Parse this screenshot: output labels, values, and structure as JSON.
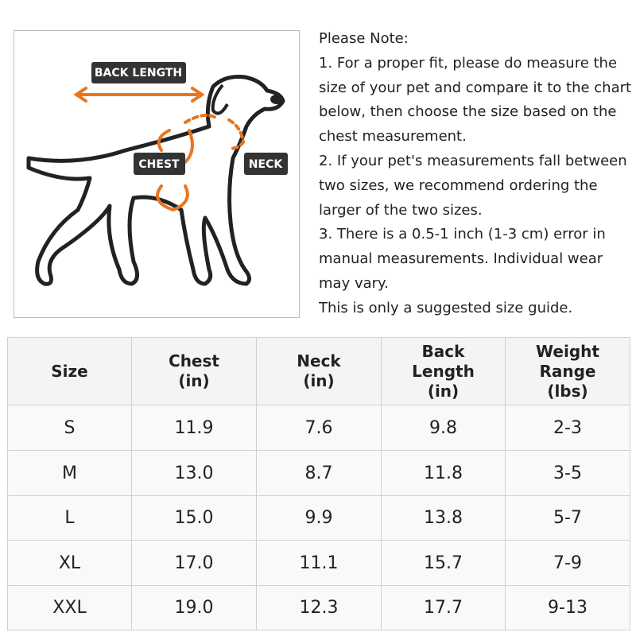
{
  "diagram": {
    "labels": {
      "back_length": "BACK LENGTH",
      "chest": "CHEST",
      "neck": "NECK"
    }
  },
  "note": {
    "lines": [
      "Please Note:",
      "1. For a proper fit, please do measure the",
      "size of your pet and compare it to the chart",
      "below, then choose the size based on the",
      "chest measurement.",
      "2. If your pet's measurements fall between",
      "two sizes, we recommend ordering the",
      "larger of the two sizes.",
      "3. There is a 0.5-1 inch (1-3 cm) error in",
      "manual measurements. Individual wear",
      "may vary.",
      "This is only a suggested size guide."
    ]
  },
  "table": {
    "header": [
      [
        "Size"
      ],
      [
        "Chest",
        "(in)"
      ],
      [
        "Neck",
        "(in)"
      ],
      [
        "Back",
        "Length",
        "(in)"
      ],
      [
        "Weight",
        "Range",
        "(lbs)"
      ]
    ],
    "rows": [
      [
        "S",
        "11.9",
        "7.6",
        "9.8",
        "2-3"
      ],
      [
        "M",
        "13.0",
        "8.7",
        "11.8",
        "3-5"
      ],
      [
        "L",
        "15.0",
        "9.9",
        "13.8",
        "5-7"
      ],
      [
        "XL",
        "17.0",
        "11.1",
        "15.7",
        "7-9"
      ],
      [
        "XXL",
        "19.0",
        "12.3",
        "17.7",
        "9-13"
      ]
    ]
  }
}
